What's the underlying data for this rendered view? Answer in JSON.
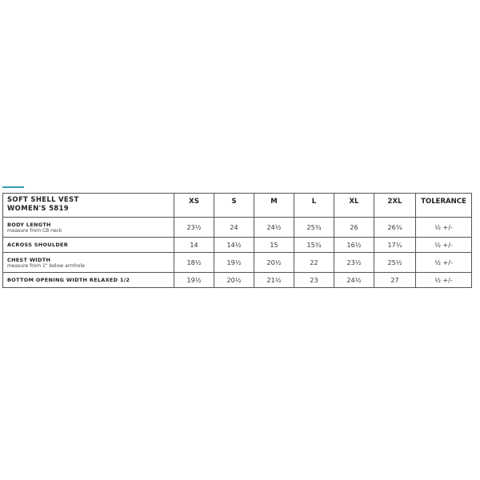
{
  "accent_color": "#3a9bb5",
  "product": {
    "name": "SOFT SHELL VEST",
    "model": "WOMEN'S 5819"
  },
  "columns": [
    "XS",
    "S",
    "M",
    "L",
    "XL",
    "2XL",
    "TOLERANCE"
  ],
  "rows": [
    {
      "label": "BODY LENGTH",
      "note": "measure from CB neck",
      "values": [
        "23½",
        "24",
        "24½",
        "25¾",
        "26",
        "26¾",
        "½ +/-"
      ]
    },
    {
      "label": "ACROSS SHOULDER",
      "note": "",
      "values": [
        "14",
        "14½",
        "15",
        "15¾",
        "16½",
        "17¼",
        "½ +/-"
      ]
    },
    {
      "label": "CHEST WIDTH",
      "note": "measure from 1\" below armhole",
      "values": [
        "18½",
        "19½",
        "20½",
        "22",
        "23½",
        "25½",
        "½ +/-"
      ]
    },
    {
      "label": "BOTTOM OPENING WIDTH RELAXED 1/2",
      "note": "",
      "values": [
        "19½",
        "20½",
        "21½",
        "23",
        "24½",
        "27",
        "½ +/-"
      ]
    }
  ]
}
